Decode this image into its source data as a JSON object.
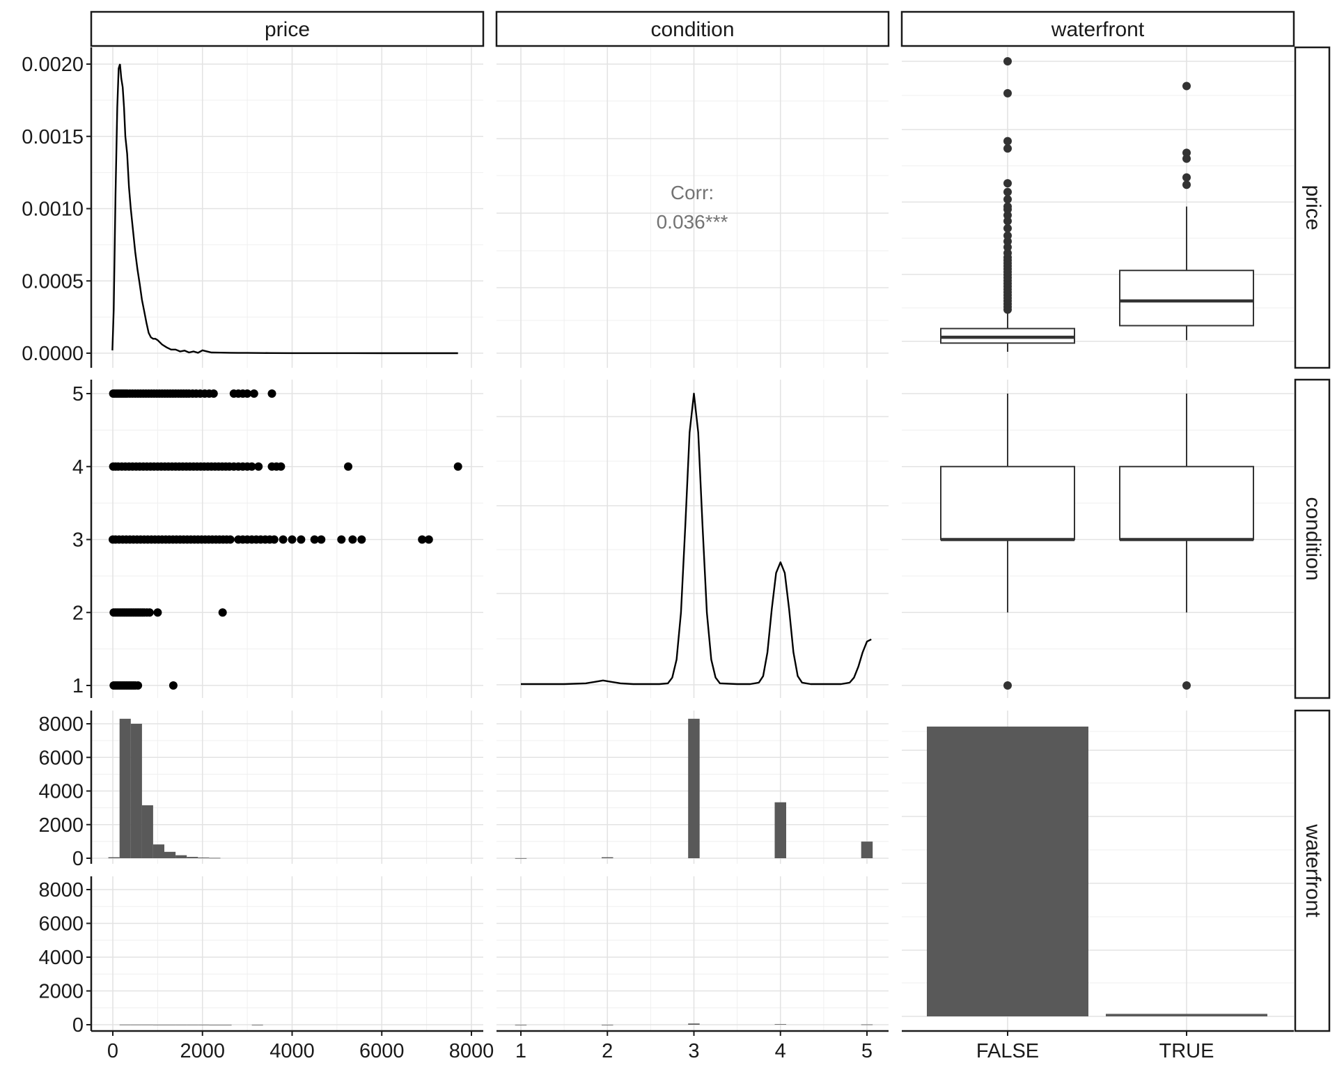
{
  "chart_data": {
    "type": "pairs",
    "variables": [
      "price",
      "condition",
      "waterfront"
    ],
    "axis_ticks": {
      "price_x": [
        "0",
        "2000",
        "4000",
        "6000",
        "8000"
      ],
      "price_density_y": [
        "0.0000",
        "0.0005",
        "0.0010",
        "0.0015",
        "0.0020"
      ],
      "condition_y": [
        "1",
        "2",
        "3",
        "4",
        "5"
      ],
      "condition_x": [
        "1",
        "2",
        "3",
        "4",
        "5"
      ],
      "count_y": [
        "0",
        "2000",
        "4000",
        "6000",
        "8000"
      ],
      "waterfront_x": [
        "FALSE",
        "TRUE"
      ]
    },
    "price_density": {
      "x": [
        -10,
        20,
        60,
        100,
        130,
        160,
        190,
        220,
        250,
        280,
        320,
        360,
        400,
        450,
        500,
        550,
        600,
        650,
        700,
        750,
        800,
        850,
        900,
        950,
        1000,
        1100,
        1200,
        1300,
        1400,
        1500,
        1600,
        1700,
        1800,
        1900,
        2000,
        2200,
        2400,
        2600,
        2800,
        3000,
        3500,
        4000,
        5000,
        6000,
        7000,
        7700
      ],
      "y": [
        2e-05,
        0.0003,
        0.0011,
        0.0017,
        0.00197,
        0.002,
        0.0019,
        0.00184,
        0.0017,
        0.0015,
        0.00138,
        0.00115,
        0.001,
        0.00085,
        0.0007,
        0.00058,
        0.00048,
        0.00037,
        0.00029,
        0.00021,
        0.00014,
        0.00011,
        0.0001,
        0.0001,
        9e-05,
        6e-05,
        4e-05,
        2.5e-05,
        2.5e-05,
        1.2e-05,
        1.8e-05,
        5e-06,
        1.2e-05,
        3e-06,
        2e-05,
        5e-06,
        4e-06,
        3e-06,
        2e-06,
        2e-06,
        1e-06,
        5e-07,
        3e-07,
        2e-07,
        1e-07,
        0.0
      ]
    },
    "correlation": {
      "label": "Corr:",
      "value": "0.036***"
    },
    "scatter_price_condition": {
      "condition_5": [
        10,
        40,
        80,
        120,
        160,
        200,
        240,
        280,
        320,
        380,
        440,
        500,
        560,
        620,
        680,
        740,
        800,
        860,
        920,
        980,
        1040,
        1100,
        1160,
        1220,
        1280,
        1340,
        1400,
        1460,
        1520,
        1580,
        1640,
        1700,
        1780,
        1860,
        1950,
        2050,
        2150,
        2250,
        2700,
        2800,
        2900,
        3000,
        3150,
        3550
      ],
      "condition_4": [
        10,
        60,
        120,
        200,
        280,
        360,
        440,
        520,
        600,
        680,
        760,
        840,
        920,
        1000,
        1080,
        1160,
        1240,
        1320,
        1400,
        1480,
        1560,
        1640,
        1720,
        1800,
        1880,
        1960,
        2040,
        2120,
        2200,
        2280,
        2360,
        2440,
        2520,
        2600,
        2700,
        2800,
        2900,
        3000,
        3100,
        3250,
        3550,
        3650,
        3750,
        5250,
        7700
      ],
      "condition_3": [
        0,
        60,
        140,
        220,
        300,
        380,
        460,
        540,
        620,
        700,
        780,
        860,
        940,
        1020,
        1100,
        1180,
        1260,
        1340,
        1420,
        1500,
        1580,
        1660,
        1740,
        1820,
        1900,
        1980,
        2060,
        2140,
        2220,
        2300,
        2380,
        2460,
        2540,
        2620,
        2800,
        2900,
        3000,
        3100,
        3200,
        3300,
        3400,
        3500,
        3600,
        3800,
        4000,
        4200,
        4500,
        4650,
        5100,
        5350,
        5550,
        6900,
        7050
      ],
      "condition_2": [
        20,
        60,
        100,
        140,
        180,
        220,
        260,
        300,
        340,
        380,
        420,
        460,
        500,
        540,
        580,
        620,
        660,
        700,
        760,
        820,
        1000,
        2450
      ],
      "condition_1": [
        20,
        60,
        100,
        140,
        180,
        220,
        260,
        300,
        340,
        380,
        420,
        460,
        500,
        560,
        1350
      ]
    },
    "condition_density": {
      "x": [
        1.0,
        1.5,
        1.75,
        1.85,
        1.95,
        2.05,
        2.15,
        2.3,
        2.6,
        2.7,
        2.75,
        2.8,
        2.85,
        2.9,
        2.95,
        3.0,
        3.05,
        3.1,
        3.15,
        3.2,
        3.25,
        3.3,
        3.5,
        3.65,
        3.75,
        3.8,
        3.85,
        3.9,
        3.95,
        4.0,
        4.05,
        4.1,
        4.15,
        4.2,
        4.25,
        4.35,
        4.7,
        4.8,
        4.85,
        4.9,
        4.95,
        5.0,
        5.05
      ],
      "y": [
        0.01,
        0.01,
        0.02,
        0.04,
        0.06,
        0.04,
        0.02,
        0.01,
        0.01,
        0.02,
        0.1,
        0.35,
        1.0,
        2.2,
        3.5,
        4.04,
        3.5,
        2.2,
        1.0,
        0.35,
        0.1,
        0.02,
        0.01,
        0.01,
        0.03,
        0.12,
        0.45,
        1.05,
        1.55,
        1.7,
        1.55,
        1.05,
        0.45,
        0.12,
        0.03,
        0.01,
        0.01,
        0.03,
        0.1,
        0.25,
        0.45,
        0.6,
        0.63
      ]
    },
    "boxplot_price_by_waterfront": {
      "categories": [
        "FALSE",
        "TRUE"
      ],
      "false": {
        "min": 0,
        "q1": 60,
        "median": 100,
        "q3": 160,
        "max": 280,
        "outliers": [
          290,
          310,
          330,
          350,
          370,
          390,
          410,
          430,
          450,
          470,
          490,
          510,
          530,
          550,
          570,
          590,
          610,
          630,
          650,
          680,
          720,
          760,
          800,
          850,
          900,
          940,
          980,
          1000,
          1050,
          1100,
          1160,
          1400,
          1450,
          1780,
          2000
        ]
      },
      "true": {
        "min": 80,
        "q1": 180,
        "median": 350,
        "q3": 560,
        "max": 1000,
        "outliers": [
          1150,
          1200,
          1330,
          1370,
          1830
        ]
      }
    },
    "boxplot_condition_by_waterfront": {
      "categories": [
        "FALSE",
        "TRUE"
      ],
      "false": {
        "min": 2,
        "q1": 3,
        "median": 3,
        "q3": 4,
        "max": 5,
        "outliers": [
          1
        ]
      },
      "true": {
        "min": 2,
        "q1": 3,
        "median": 3,
        "q3": 4,
        "max": 5,
        "outliers": [
          1
        ]
      }
    },
    "histogram_price_waterfront_false": {
      "bin_starts": [
        -100,
        150,
        400,
        650,
        900,
        1150,
        1400,
        1650,
        1900,
        2150
      ],
      "bin_width": 250,
      "counts": [
        60,
        8300,
        8000,
        3150,
        820,
        380,
        180,
        80,
        40,
        20
      ]
    },
    "histogram_price_waterfront_true": {
      "bin_starts": [
        150,
        400,
        650,
        900,
        1150,
        1400,
        1650,
        1900,
        2150,
        2400,
        3100
      ],
      "bin_width": 250,
      "counts": [
        8,
        10,
        8,
        6,
        5,
        4,
        3,
        3,
        2,
        2,
        2
      ]
    },
    "histogram_condition_waterfront_false": {
      "bin_centers": [
        1,
        2,
        3,
        4,
        5
      ],
      "bin_width": 0.133,
      "counts": [
        5,
        60,
        8300,
        3330,
        990
      ]
    },
    "histogram_condition_waterfront_true": {
      "bin_centers": [
        1,
        2,
        3,
        4,
        5
      ],
      "bin_width": 0.133,
      "counts": [
        0,
        0,
        70,
        35,
        15
      ]
    },
    "bar_waterfront": {
      "categories": [
        "FALSE",
        "TRUE"
      ],
      "counts": [
        17320,
        150
      ]
    },
    "colors": {
      "fill": "#595959",
      "line": "#000000",
      "box_line": "#333333",
      "corr_text": "#737373"
    }
  }
}
